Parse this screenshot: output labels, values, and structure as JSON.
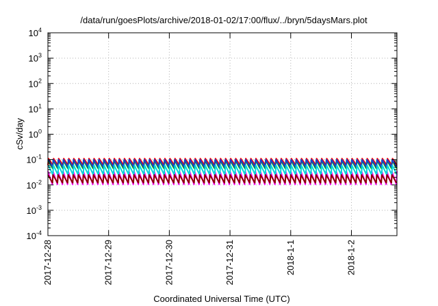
{
  "chart_data": {
    "type": "line",
    "title": "/data/run/goesPlots/archive/2018-01-02/17:00/flux/../bryn/5daysMars.plot",
    "xlabel": "Coordinated Universal Time (UTC)",
    "ylabel": "cSv/day",
    "y_scale": "log",
    "ylim": [
      0.0001,
      10000
    ],
    "y_ticks": [
      {
        "base": "10",
        "exp": "-4",
        "value": 0.0001
      },
      {
        "base": "10",
        "exp": "-3",
        "value": 0.001
      },
      {
        "base": "10",
        "exp": "-2",
        "value": 0.01
      },
      {
        "base": "10",
        "exp": "-1",
        "value": 0.1
      },
      {
        "base": "10",
        "exp": "0",
        "value": 1
      },
      {
        "base": "10",
        "exp": "1",
        "value": 10
      },
      {
        "base": "10",
        "exp": "2",
        "value": 100
      },
      {
        "base": "10",
        "exp": "3",
        "value": 1000
      },
      {
        "base": "10",
        "exp": "4",
        "value": 10000
      }
    ],
    "xlim": [
      "2017-12-28T00:00",
      "2018-01-02T18:00"
    ],
    "x_ticks": [
      {
        "label": "2017-12-28",
        "value": "2017-12-28T00:00"
      },
      {
        "label": "2017-12-29",
        "value": "2017-12-29T00:00"
      },
      {
        "label": "2017-12-30",
        "value": "2017-12-30T00:00"
      },
      {
        "label": "2017-12-31",
        "value": "2017-12-31T00:00"
      },
      {
        "label": "2018-1-1",
        "value": "2018-01-01T00:00"
      },
      {
        "label": "2018-1-2",
        "value": "2018-01-02T00:00"
      }
    ],
    "grid": true,
    "sawtooth_period_hours": 2,
    "series": [
      {
        "color": "#ff0000",
        "peak": 0.11,
        "trough": 0.06
      },
      {
        "color": "#00aa00",
        "peak": 0.095,
        "trough": 0.045
      },
      {
        "color": "#1e3ccd",
        "peak": 0.1,
        "trough": 0.05
      },
      {
        "color": "#ff00ff",
        "peak": 0.035,
        "trough": 0.0105
      },
      {
        "color": "#00d8d8",
        "peak": 0.06,
        "trough": 0.025
      },
      {
        "color": "#8b0000",
        "peak": 0.025,
        "trough": 0.012
      }
    ]
  }
}
